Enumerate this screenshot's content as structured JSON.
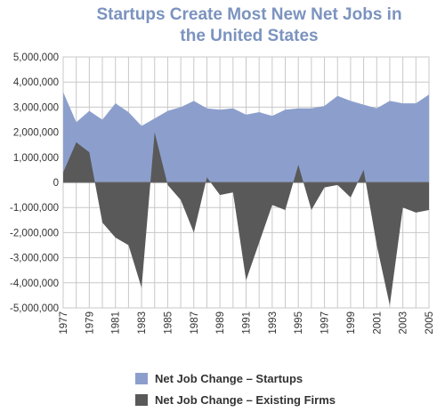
{
  "chart_data": {
    "type": "area",
    "title_lines": [
      "Startups Create Most New Net Jobs in",
      "the United States"
    ],
    "xlabel": "",
    "ylabel": "",
    "ylim": [
      -5000000,
      5000000
    ],
    "y_ticks": [
      "5,000,000",
      "4,000,000",
      "3,000,000",
      "2,000,000",
      "1,000,000",
      "0",
      "-1,000,000",
      "-2,000,000",
      "-3,000,000",
      "-4,000,000",
      "-5,000,000"
    ],
    "y_tick_values": [
      5000000,
      4000000,
      3000000,
      2000000,
      1000000,
      0,
      -1000000,
      -2000000,
      -3000000,
      -4000000,
      -5000000
    ],
    "x_tick_labels": [
      "1977",
      "1979",
      "1981",
      "1983",
      "1985",
      "1987",
      "1989",
      "1991",
      "1993",
      "1995",
      "1997",
      "1999",
      "2001",
      "2003",
      "2005"
    ],
    "grid": true,
    "legend_position": "bottom",
    "x": [
      1977,
      1978,
      1979,
      1980,
      1981,
      1982,
      1983,
      1984,
      1985,
      1986,
      1987,
      1988,
      1989,
      1990,
      1991,
      1992,
      1993,
      1994,
      1995,
      1996,
      1997,
      1998,
      1999,
      2000,
      2001,
      2002,
      2003,
      2004,
      2005
    ],
    "series": [
      {
        "name": "Net Job Change – Startups",
        "color": "#8c9fcc",
        "values": [
          3600000,
          2400000,
          2850000,
          2500000,
          3150000,
          2800000,
          2250000,
          2550000,
          2850000,
          3000000,
          3250000,
          2950000,
          2900000,
          2950000,
          2700000,
          2800000,
          2650000,
          2900000,
          2950000,
          2950000,
          3050000,
          3450000,
          3250000,
          3100000,
          2950000,
          3250000,
          3150000,
          3150000,
          3500000
        ]
      },
      {
        "name": "Net Job Change – Existing Firms",
        "color": "#595959",
        "values": [
          400000,
          1600000,
          1200000,
          -1600000,
          -2200000,
          -2500000,
          -4200000,
          2000000,
          -100000,
          -700000,
          -2000000,
          200000,
          -500000,
          -400000,
          -3900000,
          -2400000,
          -900000,
          -1100000,
          700000,
          -1100000,
          -200000,
          -100000,
          -600000,
          500000,
          -2500000,
          -4900000,
          -1000000,
          -1200000,
          -1100000
        ]
      }
    ]
  }
}
